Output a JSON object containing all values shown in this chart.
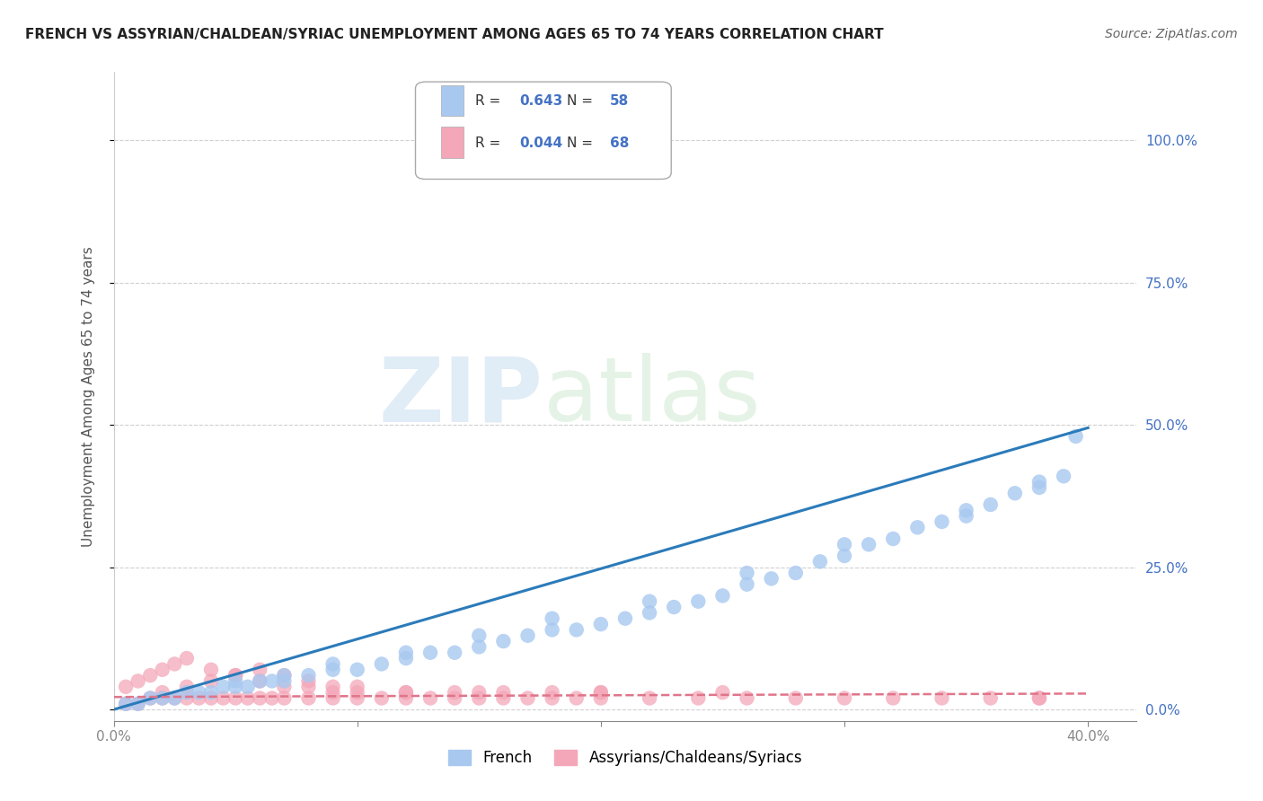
{
  "title": "FRENCH VS ASSYRIAN/CHALDEAN/SYRIAC UNEMPLOYMENT AMONG AGES 65 TO 74 YEARS CORRELATION CHART",
  "source": "Source: ZipAtlas.com",
  "ylabel": "Unemployment Among Ages 65 to 74 years",
  "xlim": [
    0.0,
    0.42
  ],
  "ylim": [
    -0.02,
    1.12
  ],
  "yticks": [
    0.0,
    0.25,
    0.5,
    0.75,
    1.0
  ],
  "ytick_labels": [
    "0.0%",
    "25.0%",
    "50.0%",
    "75.0%",
    "100.0%"
  ],
  "xtick_labels": [
    "0.0%",
    "",
    "",
    "",
    "40.0%"
  ],
  "xtick_positions": [
    0.0,
    0.1,
    0.2,
    0.3,
    0.4
  ],
  "french_R": "0.643",
  "french_N": "58",
  "assyrian_R": "0.044",
  "assyrian_N": "68",
  "french_color": "#a8c8f0",
  "french_line_color": "#2b7bba",
  "assyrian_color": "#f4a7b9",
  "assyrian_line_color": "#e0758a",
  "watermark_zip": "ZIP",
  "watermark_atlas": "atlas",
  "background_color": "#ffffff",
  "grid_color": "#d0d0d0",
  "french_scatter_x": [
    0.005,
    0.01,
    0.015,
    0.02,
    0.025,
    0.03,
    0.035,
    0.04,
    0.045,
    0.05,
    0.055,
    0.06,
    0.065,
    0.07,
    0.08,
    0.09,
    0.1,
    0.11,
    0.12,
    0.13,
    0.14,
    0.15,
    0.16,
    0.17,
    0.18,
    0.19,
    0.2,
    0.21,
    0.22,
    0.23,
    0.24,
    0.25,
    0.26,
    0.27,
    0.28,
    0.29,
    0.3,
    0.31,
    0.32,
    0.33,
    0.34,
    0.35,
    0.36,
    0.37,
    0.38,
    0.39,
    0.05,
    0.07,
    0.09,
    0.12,
    0.15,
    0.18,
    0.22,
    0.26,
    0.3,
    0.35,
    0.38,
    0.395
  ],
  "french_scatter_y": [
    0.01,
    0.01,
    0.02,
    0.02,
    0.02,
    0.03,
    0.03,
    0.03,
    0.04,
    0.04,
    0.04,
    0.05,
    0.05,
    0.05,
    0.06,
    0.07,
    0.07,
    0.08,
    0.09,
    0.1,
    0.1,
    0.11,
    0.12,
    0.13,
    0.14,
    0.14,
    0.15,
    0.16,
    0.17,
    0.18,
    0.19,
    0.2,
    0.22,
    0.23,
    0.24,
    0.26,
    0.27,
    0.29,
    0.3,
    0.32,
    0.33,
    0.35,
    0.36,
    0.38,
    0.4,
    0.41,
    0.05,
    0.06,
    0.08,
    0.1,
    0.13,
    0.16,
    0.19,
    0.24,
    0.29,
    0.34,
    0.39,
    0.48
  ],
  "assyrian_scatter_x": [
    0.005,
    0.01,
    0.015,
    0.02,
    0.025,
    0.03,
    0.035,
    0.04,
    0.045,
    0.05,
    0.055,
    0.06,
    0.065,
    0.07,
    0.08,
    0.09,
    0.1,
    0.11,
    0.12,
    0.13,
    0.14,
    0.15,
    0.16,
    0.17,
    0.18,
    0.19,
    0.2,
    0.22,
    0.24,
    0.26,
    0.28,
    0.3,
    0.32,
    0.34,
    0.36,
    0.38,
    0.02,
    0.03,
    0.04,
    0.05,
    0.06,
    0.07,
    0.08,
    0.09,
    0.1,
    0.12,
    0.14,
    0.16,
    0.18,
    0.2,
    0.005,
    0.01,
    0.015,
    0.02,
    0.025,
    0.03,
    0.04,
    0.05,
    0.06,
    0.07,
    0.08,
    0.09,
    0.1,
    0.12,
    0.15,
    0.2,
    0.25,
    0.38
  ],
  "assyrian_scatter_y": [
    0.01,
    0.01,
    0.02,
    0.02,
    0.02,
    0.02,
    0.02,
    0.02,
    0.02,
    0.02,
    0.02,
    0.02,
    0.02,
    0.02,
    0.02,
    0.02,
    0.02,
    0.02,
    0.02,
    0.02,
    0.02,
    0.02,
    0.02,
    0.02,
    0.02,
    0.02,
    0.02,
    0.02,
    0.02,
    0.02,
    0.02,
    0.02,
    0.02,
    0.02,
    0.02,
    0.02,
    0.03,
    0.04,
    0.05,
    0.06,
    0.07,
    0.06,
    0.05,
    0.04,
    0.04,
    0.03,
    0.03,
    0.03,
    0.03,
    0.03,
    0.04,
    0.05,
    0.06,
    0.07,
    0.08,
    0.09,
    0.07,
    0.06,
    0.05,
    0.04,
    0.04,
    0.03,
    0.03,
    0.03,
    0.03,
    0.03,
    0.03,
    0.02
  ],
  "french_trendline_x": [
    0.0,
    0.4
  ],
  "french_trendline_y": [
    0.0,
    0.495
  ],
  "assyrian_trendline_x": [
    0.0,
    0.4
  ],
  "assyrian_trendline_y": [
    0.022,
    0.028
  ]
}
